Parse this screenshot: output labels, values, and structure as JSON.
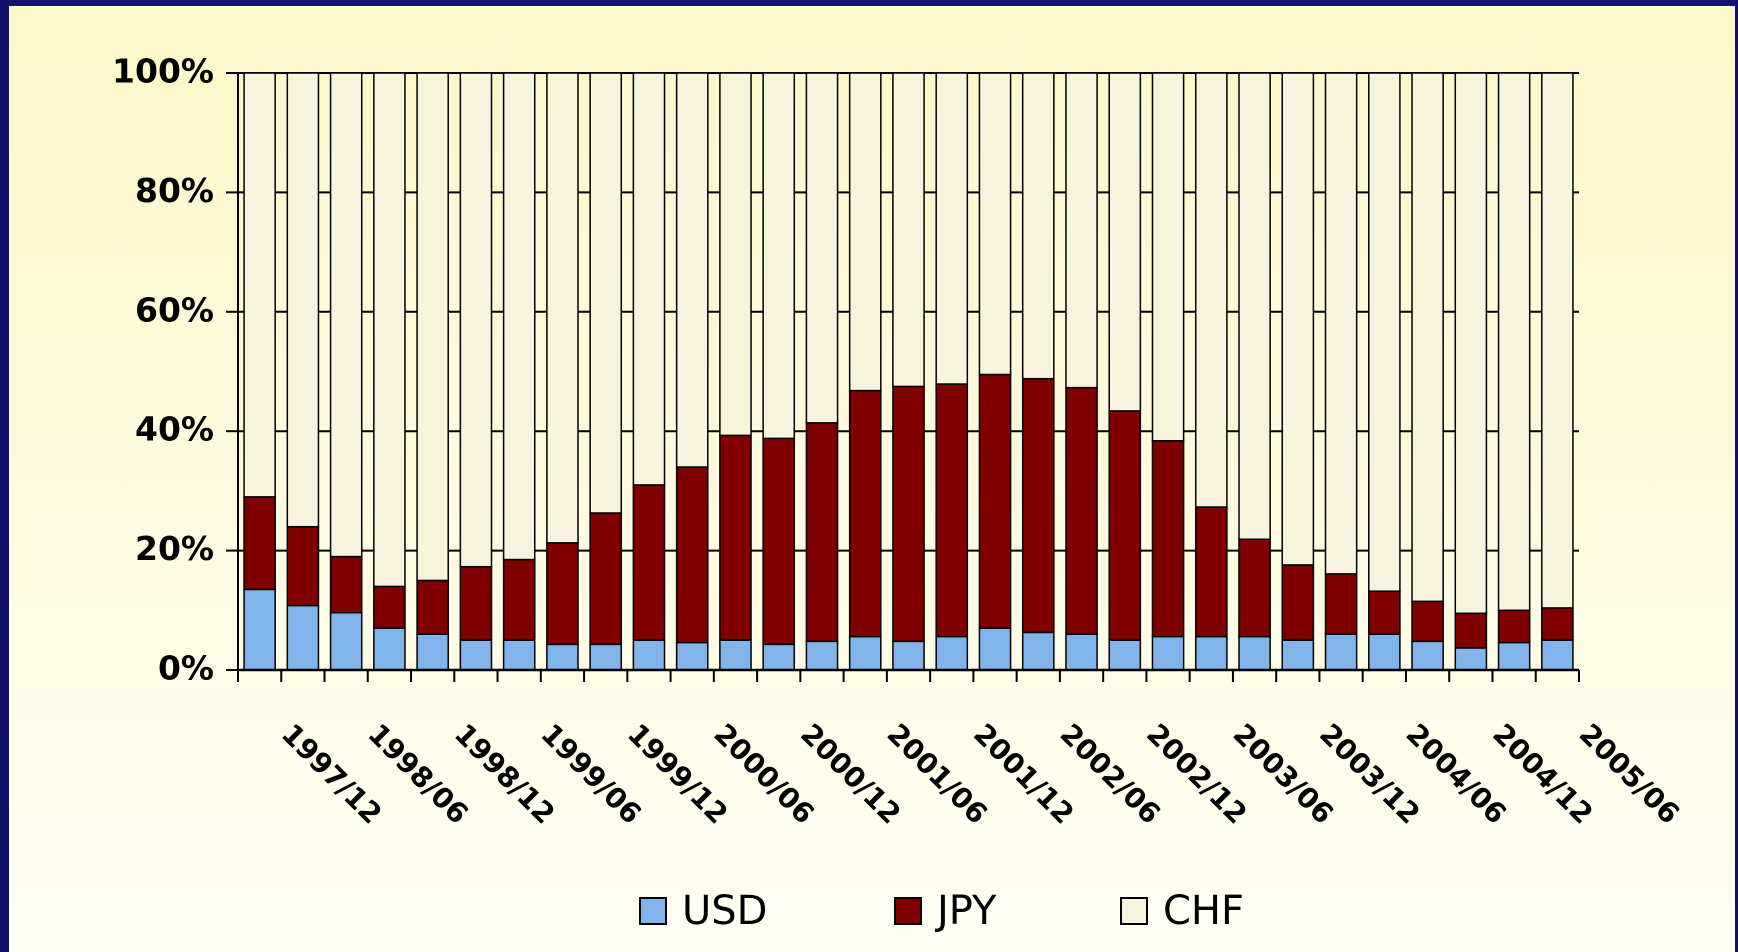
{
  "chart_data": {
    "type": "stacked_bar_100",
    "categories": [
      "1997/12",
      null,
      "1998/06",
      null,
      "1998/12",
      null,
      "1999/06",
      null,
      "1999/12",
      null,
      "2000/06",
      null,
      "2000/12",
      null,
      "2001/06",
      null,
      "2001/12",
      null,
      "2002/06",
      null,
      "2002/12",
      null,
      "2003/06",
      null,
      "2003/12",
      null,
      "2004/06",
      null,
      "2004/12",
      null,
      "2005/06"
    ],
    "series": [
      {
        "name": "USD",
        "color": "#80b4ea",
        "values": [
          13.5,
          10.8,
          9.6,
          7,
          6,
          5,
          5,
          4.3,
          4.3,
          5,
          4.6,
          5,
          4.3,
          4.8,
          5.6,
          4.8,
          5.6,
          7,
          6.3,
          6,
          5,
          5.6,
          5.6,
          5.6,
          5,
          6,
          6,
          4.8,
          3.7,
          4.6,
          5
        ]
      },
      {
        "name": "JPY",
        "color": "#800000",
        "values": [
          15.5,
          13.2,
          9.4,
          7,
          9,
          12.3,
          13.5,
          17,
          22,
          26,
          29.4,
          34.3,
          34.5,
          36.6,
          41.2,
          42.7,
          42.3,
          42.5,
          42.5,
          41.3,
          38.4,
          32.8,
          21.7,
          16.3,
          12.6,
          10.1,
          7.2,
          6.7,
          5.8,
          5.4,
          5.4
        ]
      },
      {
        "name": "CHF",
        "color": "#f6f4dc",
        "values": [
          71,
          76,
          81,
          86,
          85,
          82.7,
          81.5,
          78.7,
          73.7,
          69,
          66,
          60.7,
          61.2,
          58.6,
          53.2,
          52.5,
          52.1,
          50.5,
          51.2,
          52.7,
          56.6,
          61.6,
          72.7,
          78.1,
          82.4,
          83.9,
          86.8,
          88.5,
          90.5,
          90,
          89.6
        ]
      }
    ],
    "ylim": [
      0,
      100
    ],
    "yticks": [
      {
        "value": 0,
        "label": "0%"
      },
      {
        "value": 20,
        "label": "20%"
      },
      {
        "value": 40,
        "label": "40%"
      },
      {
        "value": 60,
        "label": "60%"
      },
      {
        "value": 80,
        "label": "80%"
      },
      {
        "value": 100,
        "label": "100%"
      }
    ],
    "grid": true,
    "legend": "bottom"
  }
}
